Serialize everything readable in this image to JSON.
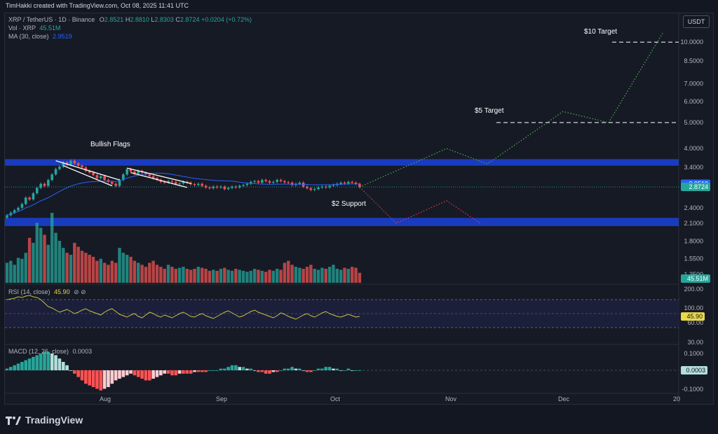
{
  "header": {
    "credit": "TimHakki created with TradingView.com, Oct 08, 2025 11:41 UTC"
  },
  "legend": {
    "symbol": "XRP / TetherUS · 1D · Binance",
    "open_label": "O",
    "open": "2.8521",
    "high_label": "H",
    "high": "2.8810",
    "low_label": "L",
    "low": "2.8303",
    "close_label": "C",
    "close": "2.8724",
    "change": "+0.0204 (+0.72%)",
    "vol_label": "Vol · XRP",
    "vol": "45.51M",
    "ma_label": "MA (30, close)",
    "ma": "2.9519"
  },
  "currency_button": "USDT",
  "rsi": {
    "label": "RSI (14, close)",
    "value": "45.90",
    "icons": "⊘ ⊘"
  },
  "macd": {
    "label": "MACD (12, 26, close)",
    "value": "0.0003"
  },
  "brand": {
    "name": "TradingView"
  },
  "colors": {
    "up": "#26a69a",
    "down": "#ef5350",
    "zone": "#1a3fd1",
    "ma": "#2962ff",
    "bull_path": "#4caf50",
    "bear_path": "#f23645",
    "rsi_line": "#c9c245"
  },
  "chart_data": [
    {
      "type": "candlestick",
      "title": "XRP / TetherUS · 1D · Binance",
      "y_scale": "log",
      "price_axis_ticks": [
        "10.0000",
        "8.5000",
        "7.0000",
        "6.0000",
        "5.0000",
        "4.0000",
        "3.4000",
        "2.4000",
        "2.1000",
        "1.8000",
        "1.5500",
        "1.3500"
      ],
      "time_axis_ticks": [
        "Aug",
        "Sep",
        "Oct",
        "Nov",
        "Dec",
        "20"
      ],
      "last_price": "2.8724",
      "ma_value": "2.9519",
      "volume_tag": "45.51M",
      "closes": [
        2.25,
        2.3,
        2.35,
        2.4,
        2.48,
        2.62,
        2.58,
        2.72,
        2.85,
        2.95,
        2.9,
        3.05,
        3.2,
        3.35,
        3.42,
        3.55,
        3.48,
        3.6,
        3.52,
        3.45,
        3.4,
        3.3,
        3.25,
        3.18,
        3.1,
        3.15,
        3.05,
        3.0,
        2.95,
        2.9,
        3.05,
        3.2,
        3.35,
        3.28,
        3.22,
        3.3,
        3.25,
        3.2,
        3.15,
        3.1,
        3.05,
        3.0,
        2.98,
        3.02,
        3.0,
        2.95,
        2.96,
        3.0,
        2.98,
        2.94,
        2.92,
        2.95,
        2.9,
        2.86,
        2.84,
        2.88,
        2.86,
        2.88,
        2.82,
        2.85,
        2.88,
        2.86,
        2.9,
        2.92,
        2.95,
        3.0,
        3.02,
        2.98,
        3.05,
        3.02,
        2.98,
        3.0,
        3.05,
        3.02,
        2.99,
        2.98,
        2.92,
        2.95,
        2.98,
        2.88,
        2.84,
        2.8,
        2.82,
        2.86,
        2.88,
        2.86,
        2.9,
        2.92,
        2.95,
        2.98,
        2.96,
        3.0,
        2.98,
        2.95,
        2.87
      ],
      "volumes": [
        20,
        22,
        18,
        25,
        24,
        30,
        45,
        40,
        60,
        55,
        48,
        38,
        70,
        50,
        42,
        35,
        30,
        28,
        40,
        36,
        32,
        30,
        28,
        26,
        22,
        24,
        20,
        18,
        22,
        20,
        35,
        30,
        28,
        26,
        22,
        20,
        18,
        16,
        20,
        22,
        18,
        16,
        14,
        18,
        16,
        14,
        15,
        16,
        14,
        13,
        14,
        16,
        15,
        14,
        12,
        13,
        12,
        14,
        15,
        13,
        12,
        14,
        13,
        12,
        11,
        12,
        14,
        13,
        12,
        11,
        13,
        12,
        14,
        13,
        20,
        22,
        18,
        16,
        15,
        14,
        16,
        18,
        14,
        13,
        15,
        14,
        16,
        18,
        14,
        13,
        15,
        14,
        16,
        15,
        10
      ],
      "annotations": [
        "Bullish Flags",
        "$2 Support",
        "$5 Target",
        "$10 Target"
      ],
      "projection_bull": [
        [
          2.87,
          "Oct 8"
        ],
        [
          4.0,
          "Oct 30"
        ],
        [
          3.5,
          "Nov 15"
        ],
        [
          5.5,
          "Nov 30"
        ],
        [
          5.0,
          "Dec 15"
        ],
        [
          10.8,
          "Dec 29"
        ]
      ],
      "projection_bear": [
        [
          2.87,
          "Oct 8"
        ],
        [
          2.1,
          "Oct 15"
        ],
        [
          2.55,
          "Oct 30"
        ],
        [
          2.1,
          "Nov 8"
        ]
      ],
      "zones": [
        {
          "label": "resistance",
          "from": 3.45,
          "to": 3.65
        },
        {
          "label": "$2 Support",
          "from": 2.05,
          "to": 2.2
        }
      ],
      "target_levels": [
        {
          "label": "$5 Target",
          "value": 5.0
        },
        {
          "label": "$10 Target",
          "value": 10.0
        }
      ]
    },
    {
      "type": "line",
      "title": "RSI (14, close)",
      "y_ticks": [
        "200.00",
        "100.00",
        "60.00",
        "30.00"
      ],
      "current": "45.90",
      "values": [
        70,
        71,
        72,
        74,
        73,
        75,
        76,
        74,
        73,
        70,
        65,
        60,
        58,
        55,
        52,
        54,
        56,
        53,
        50,
        52,
        55,
        57,
        54,
        52,
        50,
        48,
        52,
        55,
        57,
        53,
        49,
        47,
        45,
        48,
        50,
        46,
        44,
        48,
        52,
        50,
        47,
        45,
        48,
        46,
        44,
        47,
        50,
        52,
        49,
        46,
        45,
        48,
        50,
        47,
        45,
        43,
        46,
        49,
        52,
        54,
        51,
        48,
        45,
        47,
        50,
        53,
        55,
        52,
        50,
        48,
        46,
        44,
        47,
        51,
        49,
        46,
        44,
        42,
        45,
        48,
        50,
        47,
        45,
        48,
        51,
        53,
        50,
        48,
        46,
        45,
        47,
        49,
        47,
        45,
        46
      ]
    },
    {
      "type": "bar",
      "title": "MACD (12, 26, close)",
      "y_ticks": [
        "0.1000",
        "0.0003",
        "-0.1000"
      ],
      "current": "0.0003",
      "histogram": [
        0.01,
        0.02,
        0.03,
        0.04,
        0.05,
        0.06,
        0.07,
        0.08,
        0.09,
        0.1,
        0.11,
        0.11,
        0.1,
        0.09,
        0.07,
        0.05,
        0.03,
        0.0,
        -0.02,
        -0.04,
        -0.06,
        -0.08,
        -0.09,
        -0.1,
        -0.11,
        -0.12,
        -0.11,
        -0.1,
        -0.08,
        -0.06,
        -0.05,
        -0.04,
        -0.03,
        -0.02,
        -0.03,
        -0.04,
        -0.05,
        -0.06,
        -0.06,
        -0.05,
        -0.04,
        -0.03,
        -0.02,
        -0.02,
        -0.03,
        -0.03,
        -0.02,
        -0.02,
        -0.02,
        -0.02,
        -0.01,
        -0.01,
        -0.01,
        -0.01,
        0.0,
        0.0,
        0.0,
        0.01,
        0.01,
        0.02,
        0.03,
        0.03,
        0.02,
        0.02,
        0.01,
        0.01,
        0.0,
        -0.01,
        -0.01,
        -0.02,
        -0.02,
        -0.01,
        -0.01,
        0.0,
        0.01,
        0.01,
        0.02,
        0.01,
        0.01,
        0.0,
        -0.01,
        -0.01,
        0.0,
        0.01,
        0.01,
        0.02,
        0.02,
        0.01,
        0.01,
        0.0,
        0.0,
        0.01,
        0.0,
        0.0,
        0.0
      ]
    }
  ]
}
